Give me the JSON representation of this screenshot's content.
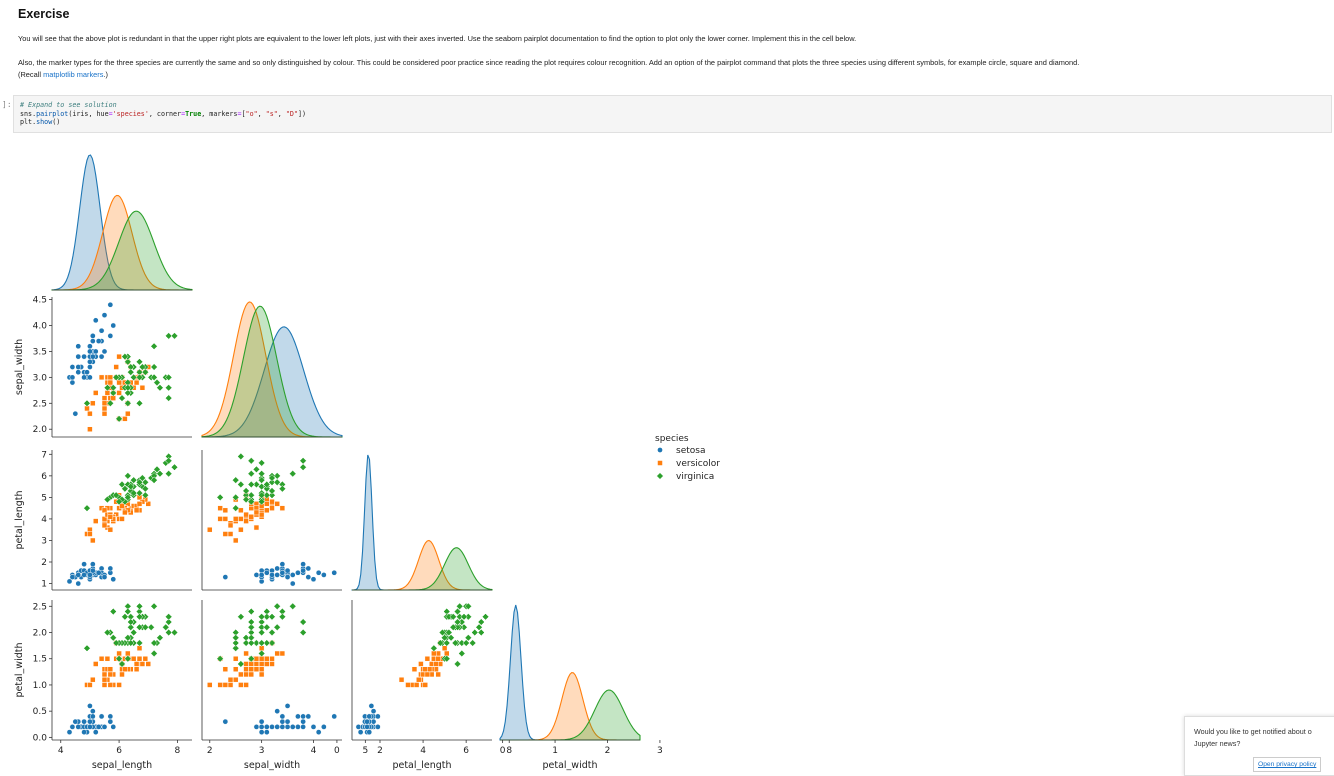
{
  "exercise": {
    "title": "Exercise",
    "para1": "You will see that the above plot is redundant in that the upper right plots are equivalent to the lower left plots, just with their axes inverted. Use the seaborn pairplot documentation to find the option to plot only the lower corner. Implement this in the cell below.",
    "para2": "Also, the marker types for the three species are currently the same and so only distinguished by colour. This could be considered poor practice since reading the plot requires colour recognition. Add an option of the pairplot command that plots the three species using different symbols, for example circle, square and diamond.",
    "para3_prefix": "(Recall ",
    "para3_link": "matplotlib markers",
    "para3_suffix": ".)"
  },
  "cell": {
    "prompt": "]:",
    "code_comment": "# Expand to see solution",
    "code_line2": "sns.pairplot(iris, hue='species', corner=True, markers=[\"o\", \"s\", \"D\"])",
    "code_line3": "plt.show()"
  },
  "colors": {
    "setosa": "#1f77b4",
    "versicolor": "#ff7f0e",
    "virginica": "#2ca02c"
  },
  "chart_data": {
    "type": "scatter",
    "variables": [
      "sepal_length",
      "sepal_width",
      "petal_length",
      "petal_width"
    ],
    "corner": true,
    "markers": {
      "setosa": "circle",
      "versicolor": "square",
      "virginica": "diamond"
    },
    "legend": {
      "title": "species",
      "entries": [
        "setosa",
        "versicolor",
        "virginica"
      ],
      "placement": "right"
    },
    "axes": {
      "sepal_length": {
        "ticks": [
          "4",
          "6",
          "8"
        ],
        "range": [
          3.7,
          8.5
        ]
      },
      "sepal_width": {
        "ticks": [
          "2.0",
          "2.5",
          "3.0",
          "3.5",
          "4.0",
          "4.5"
        ],
        "xticks": [
          "2",
          "3",
          "4",
          "5"
        ],
        "range": [
          1.85,
          4.55
        ]
      },
      "petal_length": {
        "ticks": [
          "1",
          "2",
          "3",
          "4",
          "5",
          "6",
          "7"
        ],
        "xticks": [
          "0",
          "2",
          "4",
          "6",
          "8"
        ],
        "range": [
          0.7,
          7.2
        ]
      },
      "petal_width": {
        "ticks": [
          "0.0",
          "0.5",
          "1.0",
          "1.5",
          "2.0",
          "2.5"
        ],
        "xticks": [
          "0",
          "1",
          "2",
          "3"
        ],
        "range": [
          -0.05,
          2.62
        ]
      }
    },
    "species": {
      "setosa": {
        "mean": [
          5.0,
          3.43,
          1.46,
          0.25
        ],
        "sd": [
          0.35,
          0.38,
          0.17,
          0.1
        ],
        "points": [
          [
            5.1,
            3.5,
            1.4,
            0.2
          ],
          [
            4.9,
            3.0,
            1.4,
            0.2
          ],
          [
            4.7,
            3.2,
            1.3,
            0.2
          ],
          [
            4.6,
            3.1,
            1.5,
            0.2
          ],
          [
            5.0,
            3.6,
            1.4,
            0.2
          ],
          [
            5.4,
            3.9,
            1.7,
            0.4
          ],
          [
            4.6,
            3.4,
            1.4,
            0.3
          ],
          [
            5.0,
            3.4,
            1.5,
            0.2
          ],
          [
            4.4,
            2.9,
            1.4,
            0.2
          ],
          [
            4.9,
            3.1,
            1.5,
            0.1
          ],
          [
            5.4,
            3.7,
            1.5,
            0.2
          ],
          [
            4.8,
            3.4,
            1.6,
            0.2
          ],
          [
            4.8,
            3.0,
            1.4,
            0.1
          ],
          [
            4.3,
            3.0,
            1.1,
            0.1
          ],
          [
            5.8,
            4.0,
            1.2,
            0.2
          ],
          [
            5.7,
            4.4,
            1.5,
            0.4
          ],
          [
            5.4,
            3.9,
            1.3,
            0.4
          ],
          [
            5.1,
            3.5,
            1.4,
            0.3
          ],
          [
            5.7,
            3.8,
            1.7,
            0.3
          ],
          [
            5.1,
            3.8,
            1.5,
            0.3
          ],
          [
            5.4,
            3.4,
            1.7,
            0.2
          ],
          [
            5.1,
            3.7,
            1.5,
            0.4
          ],
          [
            4.6,
            3.6,
            1.0,
            0.2
          ],
          [
            5.1,
            3.3,
            1.7,
            0.5
          ],
          [
            4.8,
            3.4,
            1.9,
            0.2
          ],
          [
            5.0,
            3.0,
            1.6,
            0.2
          ],
          [
            5.0,
            3.4,
            1.6,
            0.4
          ],
          [
            5.2,
            3.5,
            1.5,
            0.2
          ],
          [
            5.2,
            3.4,
            1.4,
            0.2
          ],
          [
            4.7,
            3.2,
            1.6,
            0.2
          ],
          [
            4.8,
            3.1,
            1.6,
            0.2
          ],
          [
            5.4,
            3.4,
            1.5,
            0.4
          ],
          [
            5.2,
            4.1,
            1.5,
            0.1
          ],
          [
            5.5,
            4.2,
            1.4,
            0.2
          ],
          [
            4.9,
            3.1,
            1.5,
            0.2
          ],
          [
            5.0,
            3.2,
            1.2,
            0.2
          ],
          [
            5.5,
            3.5,
            1.3,
            0.2
          ],
          [
            4.4,
            3.0,
            1.3,
            0.2
          ],
          [
            5.1,
            3.4,
            1.5,
            0.2
          ],
          [
            5.0,
            3.5,
            1.3,
            0.3
          ],
          [
            4.5,
            2.3,
            1.3,
            0.3
          ],
          [
            4.4,
            3.2,
            1.3,
            0.2
          ],
          [
            5.0,
            3.5,
            1.6,
            0.6
          ],
          [
            5.1,
            3.8,
            1.9,
            0.4
          ],
          [
            4.8,
            3.0,
            1.4,
            0.3
          ],
          [
            5.1,
            3.8,
            1.6,
            0.2
          ],
          [
            4.6,
            3.2,
            1.4,
            0.2
          ],
          [
            5.3,
            3.7,
            1.5,
            0.2
          ],
          [
            5.0,
            3.3,
            1.4,
            0.2
          ]
        ]
      },
      "versicolor": {
        "mean": [
          5.94,
          2.77,
          4.26,
          1.33
        ],
        "sd": [
          0.5,
          0.31,
          0.47,
          0.2
        ],
        "points": [
          [
            7.0,
            3.2,
            4.7,
            1.4
          ],
          [
            6.4,
            3.2,
            4.5,
            1.5
          ],
          [
            6.9,
            3.1,
            4.9,
            1.5
          ],
          [
            5.5,
            2.3,
            4.0,
            1.3
          ],
          [
            6.5,
            2.8,
            4.6,
            1.5
          ],
          [
            5.7,
            2.8,
            4.5,
            1.3
          ],
          [
            6.3,
            3.3,
            4.7,
            1.6
          ],
          [
            4.9,
            2.4,
            3.3,
            1.0
          ],
          [
            6.6,
            2.9,
            4.6,
            1.3
          ],
          [
            5.2,
            2.7,
            3.9,
            1.4
          ],
          [
            5.0,
            2.0,
            3.5,
            1.0
          ],
          [
            5.9,
            3.0,
            4.2,
            1.5
          ],
          [
            6.0,
            2.2,
            4.0,
            1.0
          ],
          [
            6.1,
            2.9,
            4.7,
            1.4
          ],
          [
            5.6,
            2.9,
            3.6,
            1.3
          ],
          [
            6.7,
            3.1,
            4.4,
            1.4
          ],
          [
            5.6,
            3.0,
            4.5,
            1.5
          ],
          [
            5.8,
            2.7,
            4.1,
            1.0
          ],
          [
            6.2,
            2.2,
            4.5,
            1.5
          ],
          [
            5.6,
            2.5,
            3.9,
            1.1
          ],
          [
            5.9,
            3.2,
            4.8,
            1.8
          ],
          [
            6.1,
            2.8,
            4.0,
            1.3
          ],
          [
            6.3,
            2.5,
            4.9,
            1.5
          ],
          [
            6.1,
            2.8,
            4.7,
            1.2
          ],
          [
            6.4,
            2.9,
            4.3,
            1.3
          ],
          [
            6.6,
            3.0,
            4.4,
            1.4
          ],
          [
            6.8,
            2.8,
            4.8,
            1.4
          ],
          [
            6.7,
            3.0,
            5.0,
            1.7
          ],
          [
            6.0,
            2.9,
            4.5,
            1.5
          ],
          [
            5.7,
            2.6,
            3.5,
            1.0
          ],
          [
            5.5,
            2.4,
            3.8,
            1.1
          ],
          [
            5.5,
            2.4,
            3.7,
            1.0
          ],
          [
            5.8,
            2.7,
            3.9,
            1.2
          ],
          [
            6.0,
            2.7,
            5.1,
            1.6
          ],
          [
            5.4,
            3.0,
            4.5,
            1.5
          ],
          [
            6.0,
            3.4,
            4.5,
            1.6
          ],
          [
            6.7,
            3.1,
            4.7,
            1.5
          ],
          [
            6.3,
            2.3,
            4.4,
            1.3
          ],
          [
            5.6,
            3.0,
            4.1,
            1.3
          ],
          [
            5.5,
            2.5,
            4.0,
            1.3
          ],
          [
            5.5,
            2.6,
            4.4,
            1.2
          ],
          [
            6.1,
            3.0,
            4.6,
            1.4
          ],
          [
            5.8,
            2.6,
            4.0,
            1.2
          ],
          [
            5.0,
            2.3,
            3.3,
            1.0
          ],
          [
            5.6,
            2.7,
            4.2,
            1.3
          ],
          [
            5.7,
            3.0,
            4.2,
            1.2
          ],
          [
            5.7,
            2.9,
            4.2,
            1.3
          ],
          [
            6.2,
            2.9,
            4.3,
            1.3
          ],
          [
            5.1,
            2.5,
            3.0,
            1.1
          ],
          [
            5.7,
            2.8,
            4.1,
            1.3
          ]
        ]
      },
      "virginica": {
        "mean": [
          6.59,
          2.97,
          5.55,
          2.03
        ],
        "sd": [
          0.6,
          0.32,
          0.55,
          0.27
        ],
        "points": [
          [
            6.3,
            3.3,
            6.0,
            2.5
          ],
          [
            5.8,
            2.7,
            5.1,
            1.9
          ],
          [
            7.1,
            3.0,
            5.9,
            2.1
          ],
          [
            6.3,
            2.9,
            5.6,
            1.8
          ],
          [
            6.5,
            3.0,
            5.8,
            2.2
          ],
          [
            7.6,
            3.0,
            6.6,
            2.1
          ],
          [
            4.9,
            2.5,
            4.5,
            1.7
          ],
          [
            7.3,
            2.9,
            6.3,
            1.8
          ],
          [
            6.7,
            2.5,
            5.8,
            1.8
          ],
          [
            7.2,
            3.6,
            6.1,
            2.5
          ],
          [
            6.5,
            3.2,
            5.1,
            2.0
          ],
          [
            6.4,
            2.7,
            5.3,
            1.9
          ],
          [
            6.8,
            3.0,
            5.5,
            2.1
          ],
          [
            5.7,
            2.5,
            5.0,
            2.0
          ],
          [
            5.8,
            2.8,
            5.1,
            2.4
          ],
          [
            6.4,
            3.2,
            5.3,
            2.3
          ],
          [
            6.5,
            3.0,
            5.5,
            1.8
          ],
          [
            7.7,
            3.8,
            6.7,
            2.2
          ],
          [
            7.7,
            2.6,
            6.9,
            2.3
          ],
          [
            6.0,
            2.2,
            5.0,
            1.5
          ],
          [
            6.9,
            3.2,
            5.7,
            2.3
          ],
          [
            5.6,
            2.8,
            4.9,
            2.0
          ],
          [
            7.7,
            2.8,
            6.7,
            2.0
          ],
          [
            6.3,
            2.7,
            4.9,
            1.8
          ],
          [
            6.7,
            3.3,
            5.7,
            2.1
          ],
          [
            7.2,
            3.2,
            6.0,
            1.8
          ],
          [
            6.2,
            2.8,
            4.8,
            1.8
          ],
          [
            6.1,
            3.0,
            4.9,
            1.8
          ],
          [
            6.4,
            2.8,
            5.6,
            2.1
          ],
          [
            7.2,
            3.0,
            5.8,
            1.6
          ],
          [
            7.4,
            2.8,
            6.1,
            1.9
          ],
          [
            7.9,
            3.8,
            6.4,
            2.0
          ],
          [
            6.4,
            2.8,
            5.6,
            2.2
          ],
          [
            6.3,
            2.8,
            5.1,
            1.5
          ],
          [
            6.1,
            2.6,
            5.6,
            1.4
          ],
          [
            7.7,
            3.0,
            6.1,
            2.3
          ],
          [
            6.3,
            3.4,
            5.6,
            2.4
          ],
          [
            6.4,
            3.1,
            5.5,
            1.8
          ],
          [
            6.0,
            3.0,
            4.8,
            1.8
          ],
          [
            6.9,
            3.1,
            5.4,
            2.1
          ],
          [
            6.7,
            3.1,
            5.6,
            2.4
          ],
          [
            6.9,
            3.1,
            5.1,
            2.3
          ],
          [
            6.8,
            3.2,
            5.9,
            2.3
          ],
          [
            6.7,
            3.3,
            5.7,
            2.5
          ],
          [
            6.7,
            3.0,
            5.2,
            2.3
          ],
          [
            6.3,
            2.5,
            5.0,
            1.9
          ],
          [
            6.5,
            3.0,
            5.2,
            2.0
          ],
          [
            6.2,
            3.4,
            5.4,
            2.3
          ],
          [
            5.9,
            3.0,
            5.1,
            1.8
          ]
        ]
      }
    }
  },
  "notification": {
    "text_line1": "Would you like to get notified about o",
    "text_line2": "Jupyter news?",
    "button": "Open privacy policy"
  }
}
